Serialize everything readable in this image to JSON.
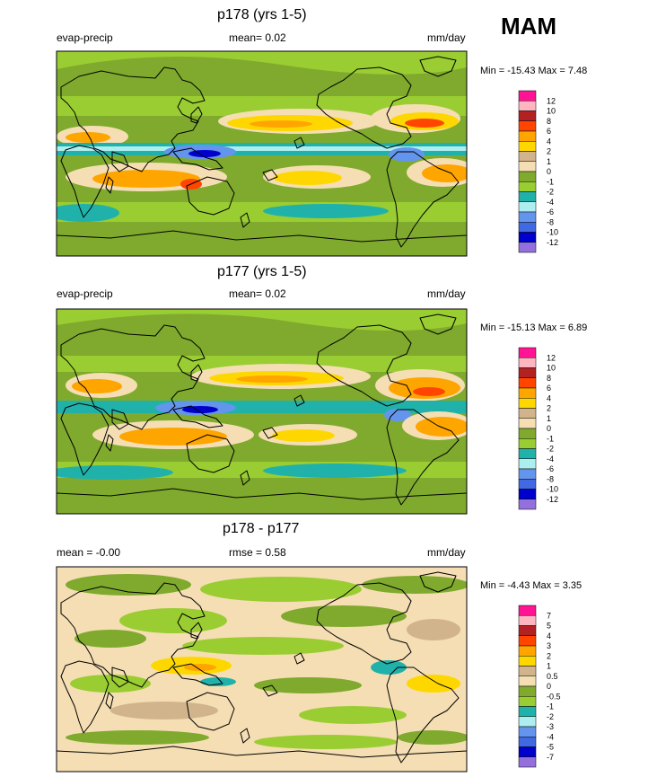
{
  "season": "MAM",
  "palette_12": {
    "12": "#ff1493",
    "10": "#ffb6c1",
    "8": "#b22222",
    "6": "#ff4500",
    "4": "#ffa500",
    "2": "#ffd700",
    "1": "#d2b48c",
    "0": "#f5deb3",
    "-1": "#7faa2e",
    "-2": "#9acd32",
    "-4": "#20b2aa",
    "-6": "#afeeee",
    "-8": "#6495ed",
    "-10": "#4169e1",
    "-12": "#0000cd",
    "-99": "#9370db"
  },
  "chart_data": [
    {
      "type": "heatmap",
      "title": "p178 (yrs 1-5)",
      "left_label": "evap-precip",
      "center_label": "mean=  0.02",
      "right_label": "mm/day",
      "min_max": "Min = -15.43 Max =   7.48",
      "legend_levels": [
        "12",
        "10",
        "8",
        "6",
        "4",
        "2",
        "1",
        "0",
        "-1",
        "-2",
        "-4",
        "-6",
        "-8",
        "-10",
        "-12"
      ],
      "legend_colors": [
        "#ff1493",
        "#ffb6c1",
        "#b22222",
        "#ff4500",
        "#ffa500",
        "#ffd700",
        "#d2b48c",
        "#f5deb3",
        "#7faa2e",
        "#9acd32",
        "#20b2aa",
        "#afeeee",
        "#6495ed",
        "#4169e1",
        "#0000cd",
        "#9370db"
      ]
    },
    {
      "type": "heatmap",
      "title": "p177 (yrs 1-5)",
      "left_label": "evap-precip",
      "center_label": "mean=  0.02",
      "right_label": "mm/day",
      "min_max": "Min = -15.13 Max =   6.89",
      "legend_levels": [
        "12",
        "10",
        "8",
        "6",
        "4",
        "2",
        "1",
        "0",
        "-1",
        "-2",
        "-4",
        "-6",
        "-8",
        "-10",
        "-12"
      ],
      "legend_colors": [
        "#ff1493",
        "#ffb6c1",
        "#b22222",
        "#ff4500",
        "#ffa500",
        "#ffd700",
        "#d2b48c",
        "#f5deb3",
        "#7faa2e",
        "#9acd32",
        "#20b2aa",
        "#afeeee",
        "#6495ed",
        "#4169e1",
        "#0000cd",
        "#9370db"
      ]
    },
    {
      "type": "heatmap",
      "title": "p178 - p177",
      "left_label": "mean =  -0.00",
      "center_label": "rmse =   0.58",
      "right_label": "mm/day",
      "min_max": "Min =  -4.43 Max =   3.35",
      "legend_levels": [
        "7",
        "5",
        "4",
        "3",
        "2",
        "1",
        "0.5",
        "0",
        "-0.5",
        "-1",
        "-2",
        "-3",
        "-4",
        "-5",
        "-7"
      ],
      "legend_colors": [
        "#ff1493",
        "#ffb6c1",
        "#b22222",
        "#ff4500",
        "#ffa500",
        "#ffd700",
        "#d2b48c",
        "#f5deb3",
        "#7faa2e",
        "#9acd32",
        "#20b2aa",
        "#afeeee",
        "#6495ed",
        "#4169e1",
        "#0000cd",
        "#9370db"
      ]
    }
  ]
}
